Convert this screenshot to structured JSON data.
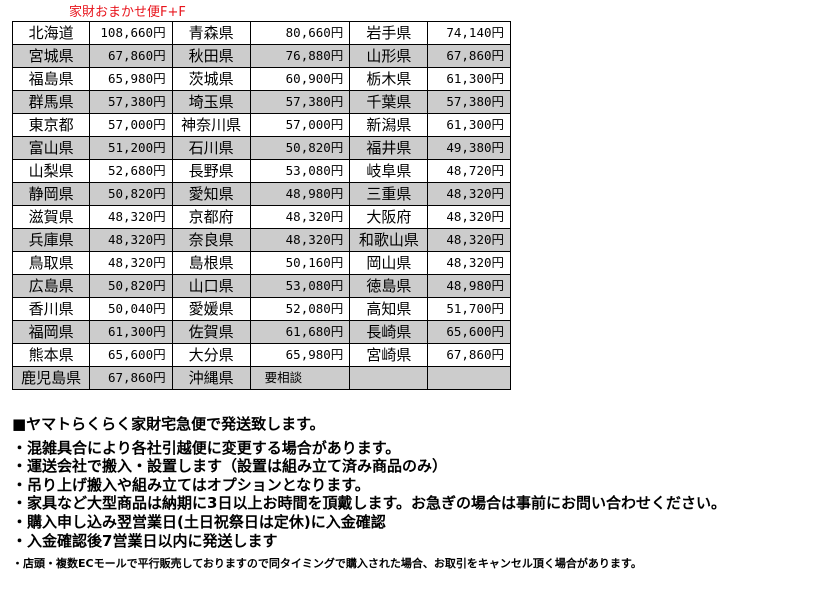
{
  "title": "家財おまかせ便F+F",
  "rows": [
    [
      [
        "北海道",
        "108,660円"
      ],
      [
        "青森県",
        "80,660円"
      ],
      [
        "岩手県",
        "74,140円"
      ]
    ],
    [
      [
        "宮城県",
        "67,860円"
      ],
      [
        "秋田県",
        "76,880円"
      ],
      [
        "山形県",
        "67,860円"
      ]
    ],
    [
      [
        "福島県",
        "65,980円"
      ],
      [
        "茨城県",
        "60,900円"
      ],
      [
        "栃木県",
        "61,300円"
      ]
    ],
    [
      [
        "群馬県",
        "57,380円"
      ],
      [
        "埼玉県",
        "57,380円"
      ],
      [
        "千葉県",
        "57,380円"
      ]
    ],
    [
      [
        "東京都",
        "57,000円"
      ],
      [
        "神奈川県",
        "57,000円"
      ],
      [
        "新潟県",
        "61,300円"
      ]
    ],
    [
      [
        "富山県",
        "51,200円"
      ],
      [
        "石川県",
        "50,820円"
      ],
      [
        "福井県",
        "49,380円"
      ]
    ],
    [
      [
        "山梨県",
        "52,680円"
      ],
      [
        "長野県",
        "53,080円"
      ],
      [
        "岐阜県",
        "48,720円"
      ]
    ],
    [
      [
        "静岡県",
        "50,820円"
      ],
      [
        "愛知県",
        "48,980円"
      ],
      [
        "三重県",
        "48,320円"
      ]
    ],
    [
      [
        "滋賀県",
        "48,320円"
      ],
      [
        "京都府",
        "48,320円"
      ],
      [
        "大阪府",
        "48,320円"
      ]
    ],
    [
      [
        "兵庫県",
        "48,320円"
      ],
      [
        "奈良県",
        "48,320円"
      ],
      [
        "和歌山県",
        "48,320円"
      ]
    ],
    [
      [
        "鳥取県",
        "48,320円"
      ],
      [
        "島根県",
        "50,160円"
      ],
      [
        "岡山県",
        "48,320円"
      ]
    ],
    [
      [
        "広島県",
        "50,820円"
      ],
      [
        "山口県",
        "53,080円"
      ],
      [
        "徳島県",
        "48,980円"
      ]
    ],
    [
      [
        "香川県",
        "50,040円"
      ],
      [
        "愛媛県",
        "52,080円"
      ],
      [
        "高知県",
        "51,700円"
      ]
    ],
    [
      [
        "福岡県",
        "61,300円"
      ],
      [
        "佐賀県",
        "61,680円"
      ],
      [
        "長崎県",
        "65,600円"
      ]
    ],
    [
      [
        "熊本県",
        "65,600円"
      ],
      [
        "大分県",
        "65,980円"
      ],
      [
        "宮崎県",
        "67,860円"
      ]
    ],
    [
      [
        "鹿児島県",
        "67,860円"
      ],
      [
        "沖縄県",
        "要相談"
      ],
      [
        "",
        ""
      ]
    ]
  ],
  "notes": {
    "heading": "■ヤマトらくらく家財宅急便で発送致します。",
    "bullets": [
      "・混雑具合により各社引越便に変更する場合があります。",
      "・運送会社で搬入・設置します（設置は組み立て済み商品のみ）",
      "・吊り上げ搬入や組み立てはオプションとなります。",
      "・家具など大型商品は納期に3日以上お時間を頂戴します。お急ぎの場合は事前にお問い合わせください。",
      "・購入申し込み翌営業日(土日祝祭日は定休)に入金確認",
      "・入金確認後7営業日以内に発送します"
    ],
    "footnote": "・店頭・複数ECモールで平行販売しておりますので同タイミングで購入された場合、お取引をキャンセル頂く場合があります。"
  },
  "colors": {
    "title": "#e8141c",
    "row_alt": "#cccccc"
  }
}
